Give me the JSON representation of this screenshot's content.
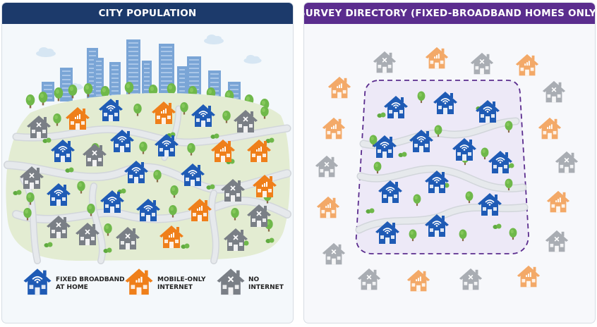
{
  "left_panel": {
    "title": "CITY POPULATION",
    "header_color": "#1c3a6b"
  },
  "right_panel": {
    "title": "SURVEY DIRECTORY (FIXED-BROADBAND HOMES ONLY)",
    "header_color": "#5b2d8e"
  },
  "legend": [
    {
      "icon": "house-wifi-icon",
      "line1": "FIXED BROADBAND",
      "line2": "AT HOME",
      "color": "#1f5bb5"
    },
    {
      "icon": "house-signal-bars-icon",
      "line1": "MOBILE-ONLY",
      "line2": "INTERNET",
      "color": "#ef7f1a"
    },
    {
      "icon": "house-x-icon",
      "line1": "NO",
      "line2": "INTERNET",
      "color": "#7a7f86"
    }
  ],
  "colors": {
    "fixed": "#1f5bb5",
    "mobile": "#ef7f1a",
    "none": "#7a7f86",
    "survey_boundary": "#5b2d8e"
  }
}
